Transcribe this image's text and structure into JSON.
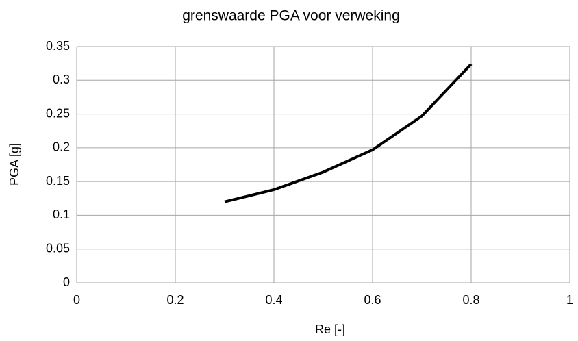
{
  "chart_data": {
    "type": "line",
    "title": "grenswaarde PGA voor verweking",
    "xlabel": "Re [-]",
    "ylabel": "PGA [g]",
    "x": [
      0.3,
      0.4,
      0.5,
      0.6,
      0.7,
      0.8
    ],
    "series": [
      {
        "name": "PGA",
        "color": "#000000",
        "values": [
          0.12,
          0.138,
          0.164,
          0.197,
          0.247,
          0.324
        ]
      }
    ],
    "xlim": [
      0,
      1
    ],
    "xticks": [
      0,
      0.2,
      0.4,
      0.6,
      0.8,
      1
    ],
    "ylim": [
      0,
      0.35
    ],
    "yticks": [
      0,
      0.05,
      0.1,
      0.15,
      0.2,
      0.25,
      0.3,
      0.35
    ],
    "grid": true
  }
}
